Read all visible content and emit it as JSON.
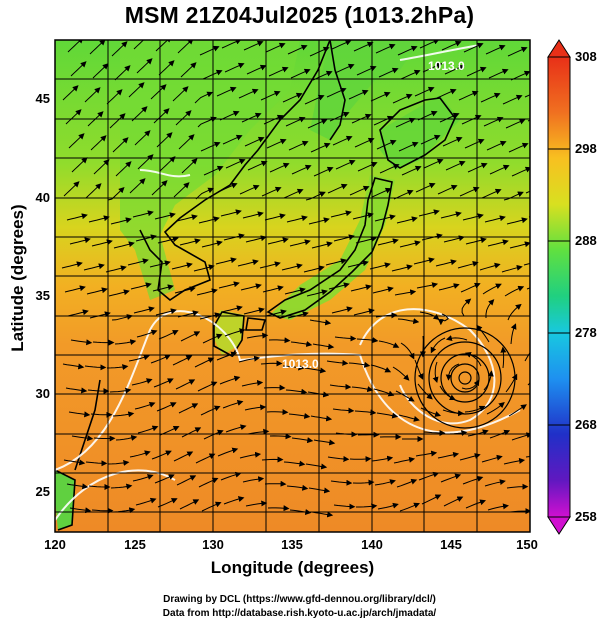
{
  "title": "MSM 21Z04Jul2025 (1013.2hPa)",
  "axes": {
    "xlabel": "Longitude (degrees)",
    "ylabel": "Latitude  (degrees)",
    "xticks": [
      "120",
      "125",
      "130",
      "135",
      "140",
      "145",
      "150"
    ],
    "yticks": [
      "45",
      "40",
      "35",
      "30",
      "25"
    ],
    "xrange": [
      120,
      150
    ],
    "yrange": [
      22.5,
      47.5
    ]
  },
  "colorbar": {
    "ticks": [
      "308",
      "298",
      "288",
      "278",
      "268",
      "258"
    ],
    "range": [
      258,
      308
    ],
    "colors": [
      "#d010d0",
      "#3018c8",
      "#1e6cf0",
      "#18c0e8",
      "#20d060",
      "#50e040",
      "#b0e020",
      "#f8d018",
      "#f8a020",
      "#f07020",
      "#e83018"
    ]
  },
  "contour_labels": [
    "1013.0",
    "1013.0"
  ],
  "field_colors": {
    "north": "#68d838",
    "mid": "#c8d820",
    "south": "#f09a28",
    "deep_south": "#ee8a26",
    "land": "#5cd438"
  },
  "credits": {
    "line1": "Drawing by DCL (https://www.gfd-dennou.org/library/dcl/)",
    "line2": "Data from http://database.rish.kyoto-u.ac.jp/arch/jmadata/"
  }
}
